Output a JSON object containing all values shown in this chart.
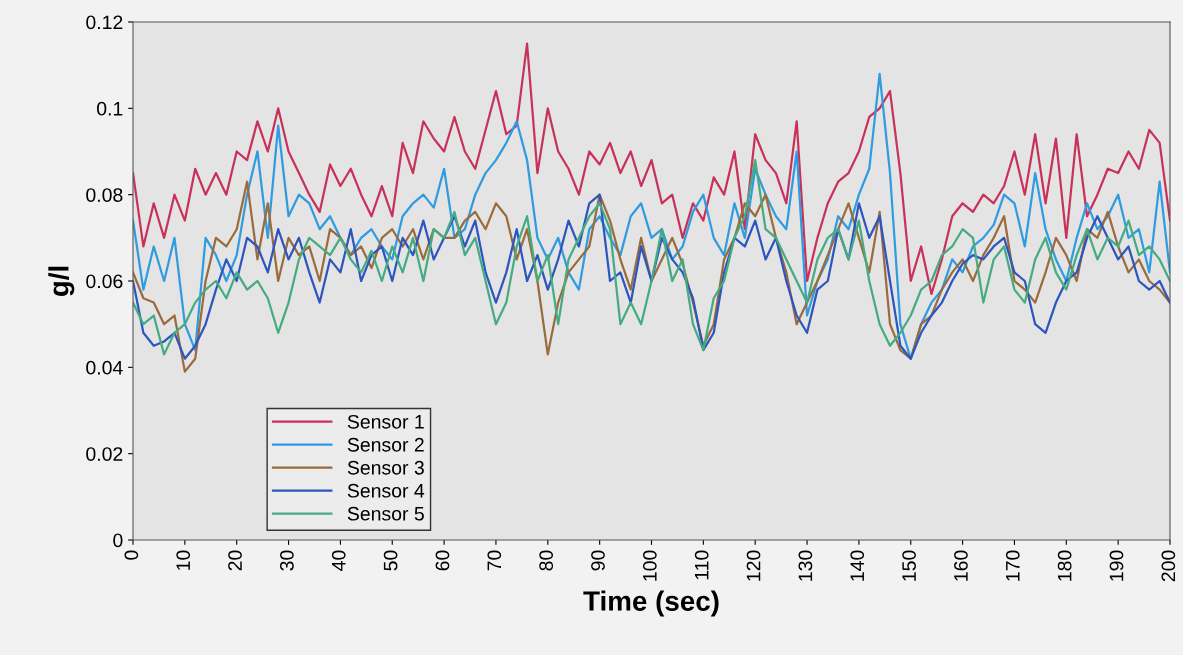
{
  "chart_data": {
    "type": "line",
    "xlabel": "Time (sec)",
    "ylabel": "g/l",
    "x": [
      0,
      2,
      4,
      6,
      8,
      10,
      12,
      14,
      16,
      18,
      20,
      22,
      24,
      26,
      28,
      30,
      32,
      34,
      36,
      38,
      40,
      42,
      44,
      46,
      48,
      50,
      52,
      54,
      56,
      58,
      60,
      62,
      64,
      66,
      68,
      70,
      72,
      74,
      76,
      78,
      80,
      82,
      84,
      86,
      88,
      90,
      92,
      94,
      96,
      98,
      100,
      102,
      104,
      106,
      108,
      110,
      112,
      114,
      116,
      118,
      120,
      122,
      124,
      126,
      128,
      130,
      132,
      134,
      136,
      138,
      140,
      142,
      144,
      146,
      148,
      150,
      152,
      154,
      156,
      158,
      160,
      162,
      164,
      166,
      168,
      170,
      172,
      174,
      176,
      178,
      180,
      182,
      184,
      186,
      188,
      190,
      192,
      194,
      196,
      198,
      200
    ],
    "series": [
      {
        "name": "Sensor 1",
        "color": "#c8325a",
        "values": [
          0.085,
          0.068,
          0.078,
          0.07,
          0.08,
          0.074,
          0.086,
          0.08,
          0.085,
          0.08,
          0.09,
          0.088,
          0.097,
          0.09,
          0.1,
          0.09,
          0.085,
          0.08,
          0.076,
          0.087,
          0.082,
          0.086,
          0.08,
          0.075,
          0.082,
          0.075,
          0.092,
          0.085,
          0.097,
          0.093,
          0.09,
          0.098,
          0.09,
          0.086,
          0.095,
          0.104,
          0.094,
          0.096,
          0.115,
          0.085,
          0.1,
          0.09,
          0.086,
          0.08,
          0.09,
          0.087,
          0.092,
          0.085,
          0.09,
          0.082,
          0.088,
          0.078,
          0.08,
          0.07,
          0.078,
          0.074,
          0.084,
          0.08,
          0.09,
          0.072,
          0.094,
          0.088,
          0.085,
          0.078,
          0.097,
          0.06,
          0.07,
          0.078,
          0.083,
          0.085,
          0.09,
          0.098,
          0.1,
          0.104,
          0.085,
          0.06,
          0.068,
          0.057,
          0.065,
          0.075,
          0.078,
          0.076,
          0.08,
          0.078,
          0.082,
          0.09,
          0.08,
          0.094,
          0.078,
          0.093,
          0.07,
          0.094,
          0.075,
          0.08,
          0.086,
          0.085,
          0.09,
          0.086,
          0.095,
          0.092,
          0.074
        ]
      },
      {
        "name": "Sensor 2",
        "color": "#2f9be0",
        "values": [
          0.074,
          0.058,
          0.068,
          0.06,
          0.07,
          0.05,
          0.044,
          0.07,
          0.066,
          0.06,
          0.066,
          0.08,
          0.09,
          0.07,
          0.096,
          0.075,
          0.08,
          0.078,
          0.072,
          0.075,
          0.07,
          0.066,
          0.07,
          0.072,
          0.068,
          0.065,
          0.075,
          0.078,
          0.08,
          0.077,
          0.086,
          0.07,
          0.072,
          0.08,
          0.085,
          0.088,
          0.092,
          0.097,
          0.088,
          0.07,
          0.065,
          0.07,
          0.062,
          0.058,
          0.072,
          0.075,
          0.07,
          0.066,
          0.075,
          0.078,
          0.07,
          0.072,
          0.065,
          0.068,
          0.076,
          0.08,
          0.07,
          0.066,
          0.078,
          0.07,
          0.086,
          0.08,
          0.075,
          0.072,
          0.09,
          0.052,
          0.06,
          0.065,
          0.075,
          0.072,
          0.08,
          0.086,
          0.108,
          0.085,
          0.05,
          0.042,
          0.05,
          0.055,
          0.058,
          0.065,
          0.062,
          0.068,
          0.07,
          0.073,
          0.08,
          0.078,
          0.068,
          0.085,
          0.072,
          0.065,
          0.06,
          0.07,
          0.078,
          0.072,
          0.075,
          0.08,
          0.07,
          0.072,
          0.062,
          0.083,
          0.062
        ]
      },
      {
        "name": "Sensor 3",
        "color": "#9a6b3c",
        "values": [
          0.062,
          0.056,
          0.055,
          0.05,
          0.052,
          0.039,
          0.042,
          0.06,
          0.07,
          0.068,
          0.072,
          0.083,
          0.065,
          0.078,
          0.06,
          0.07,
          0.066,
          0.068,
          0.06,
          0.072,
          0.07,
          0.066,
          0.068,
          0.063,
          0.07,
          0.072,
          0.068,
          0.072,
          0.065,
          0.072,
          0.07,
          0.07,
          0.074,
          0.076,
          0.072,
          0.078,
          0.075,
          0.065,
          0.072,
          0.06,
          0.043,
          0.055,
          0.062,
          0.065,
          0.068,
          0.08,
          0.074,
          0.065,
          0.058,
          0.07,
          0.06,
          0.065,
          0.07,
          0.064,
          0.055,
          0.045,
          0.05,
          0.065,
          0.07,
          0.078,
          0.075,
          0.08,
          0.07,
          0.062,
          0.05,
          0.055,
          0.06,
          0.066,
          0.072,
          0.078,
          0.07,
          0.062,
          0.076,
          0.05,
          0.044,
          0.042,
          0.05,
          0.052,
          0.058,
          0.062,
          0.065,
          0.06,
          0.066,
          0.07,
          0.075,
          0.06,
          0.058,
          0.055,
          0.062,
          0.07,
          0.066,
          0.06,
          0.072,
          0.07,
          0.076,
          0.068,
          0.062,
          0.065,
          0.06,
          0.058,
          0.055
        ]
      },
      {
        "name": "Sensor 4",
        "color": "#2d55c0",
        "values": [
          0.06,
          0.048,
          0.045,
          0.046,
          0.048,
          0.042,
          0.045,
          0.05,
          0.058,
          0.065,
          0.06,
          0.07,
          0.068,
          0.062,
          0.072,
          0.065,
          0.07,
          0.062,
          0.055,
          0.065,
          0.062,
          0.072,
          0.06,
          0.066,
          0.068,
          0.06,
          0.07,
          0.066,
          0.074,
          0.065,
          0.07,
          0.075,
          0.068,
          0.074,
          0.062,
          0.055,
          0.062,
          0.072,
          0.06,
          0.066,
          0.058,
          0.065,
          0.074,
          0.068,
          0.078,
          0.08,
          0.06,
          0.062,
          0.055,
          0.068,
          0.06,
          0.07,
          0.065,
          0.062,
          0.056,
          0.044,
          0.048,
          0.062,
          0.07,
          0.068,
          0.074,
          0.065,
          0.07,
          0.06,
          0.052,
          0.048,
          0.058,
          0.06,
          0.072,
          0.065,
          0.078,
          0.07,
          0.075,
          0.06,
          0.045,
          0.042,
          0.048,
          0.052,
          0.055,
          0.06,
          0.064,
          0.066,
          0.065,
          0.068,
          0.07,
          0.062,
          0.06,
          0.05,
          0.048,
          0.055,
          0.06,
          0.062,
          0.07,
          0.075,
          0.07,
          0.065,
          0.068,
          0.06,
          0.058,
          0.06,
          0.055
        ]
      },
      {
        "name": "Sensor 5",
        "color": "#45ab80",
        "values": [
          0.055,
          0.05,
          0.052,
          0.043,
          0.048,
          0.05,
          0.055,
          0.058,
          0.06,
          0.056,
          0.062,
          0.058,
          0.06,
          0.056,
          0.048,
          0.055,
          0.065,
          0.07,
          0.068,
          0.066,
          0.07,
          0.065,
          0.062,
          0.067,
          0.06,
          0.068,
          0.062,
          0.07,
          0.06,
          0.072,
          0.07,
          0.076,
          0.066,
          0.07,
          0.06,
          0.05,
          0.055,
          0.068,
          0.075,
          0.06,
          0.066,
          0.05,
          0.065,
          0.07,
          0.075,
          0.078,
          0.072,
          0.05,
          0.055,
          0.05,
          0.06,
          0.072,
          0.06,
          0.065,
          0.05,
          0.044,
          0.056,
          0.06,
          0.07,
          0.075,
          0.088,
          0.072,
          0.07,
          0.065,
          0.06,
          0.055,
          0.065,
          0.07,
          0.072,
          0.065,
          0.074,
          0.06,
          0.05,
          0.045,
          0.048,
          0.052,
          0.058,
          0.06,
          0.066,
          0.068,
          0.072,
          0.07,
          0.055,
          0.065,
          0.068,
          0.058,
          0.055,
          0.065,
          0.07,
          0.062,
          0.058,
          0.066,
          0.072,
          0.065,
          0.07,
          0.068,
          0.074,
          0.066,
          0.068,
          0.065,
          0.06
        ]
      }
    ],
    "xlim": [
      0,
      200
    ],
    "xticks": [
      0,
      10,
      20,
      30,
      40,
      50,
      60,
      70,
      80,
      90,
      100,
      110,
      120,
      130,
      140,
      150,
      160,
      170,
      180,
      190,
      200
    ],
    "ylim": [
      0,
      0.12
    ],
    "yticks": [
      0,
      0.02,
      0.04,
      0.06,
      0.08,
      0.1,
      0.12
    ],
    "grid": false,
    "legend": "bottom left",
    "marker": "none",
    "line_style": "solid"
  }
}
